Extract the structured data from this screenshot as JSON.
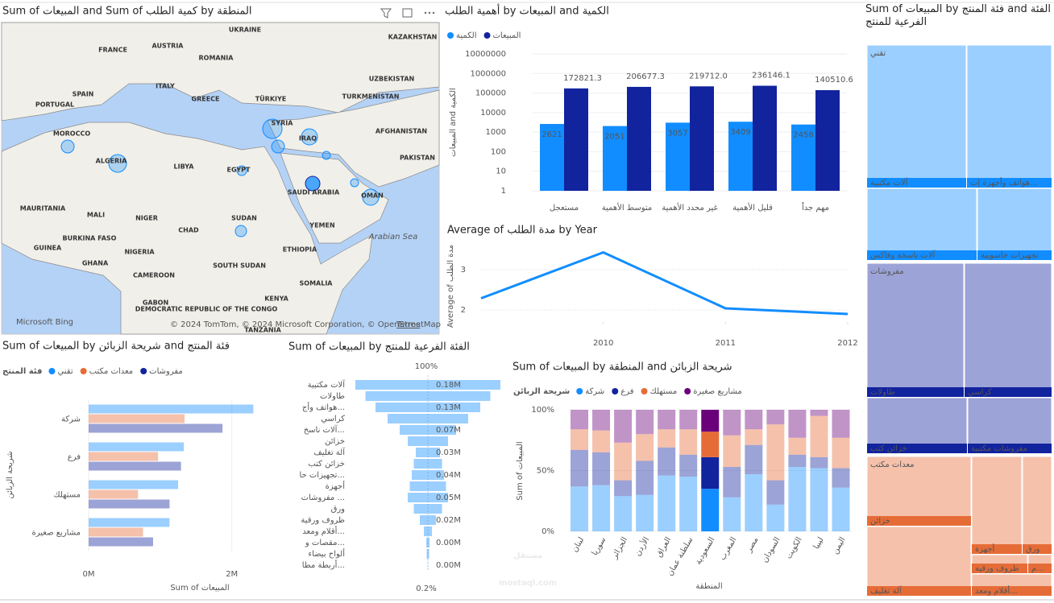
{
  "chart_data": [
    {
      "type": "map",
      "title": "Sum of المبيعات and Sum of كمية الطلب by المنطقة",
      "places": [
        "UKRAINE",
        "KAZAKHSTAN",
        "FRANCE",
        "AUSTRIA",
        "ROMANIA",
        "SPAIN",
        "ITALY",
        "GREECE",
        "TÜRKIYE",
        "UZBEKISTAN",
        "TURKMENISTAN",
        "PORTUGAL",
        "SYRIA",
        "IRAQ",
        "AFGHANISTAN",
        "MOROCCO",
        "PAKISTAN",
        "ALGERIA",
        "LIBYA",
        "EGYPT",
        "SAUDI ARABIA",
        "OMAN",
        "MAURITANIA",
        "MALI",
        "NIGER",
        "CHAD",
        "SUDAN",
        "YEMEN",
        "BURKINA FASO",
        "GUINEA",
        "NIGERIA",
        "SOUTH SUDAN",
        "GHANA",
        "CAMEROON",
        "ETHIOPIA",
        "SOMALIA",
        "GABON",
        "KENYA",
        "DEMOCRATIC REPUBLIC OF THE CONGO",
        "TANZANIA"
      ],
      "sea_label": "Arabian Sea",
      "attribution": {
        "brand": "Microsoft Bing",
        "copyright": "© 2024 TomTom, © 2024 Microsoft Corporation, © OpenStreetMap",
        "terms": "Terms"
      }
    },
    {
      "type": "bar",
      "title": "أهمية الطلب by المبيعات and الكمية",
      "ylabel": "المبيعات and الكمية",
      "categories": [
        "مستعجل",
        "متوسط الأهمية",
        "غير محدد الأهمية",
        "قليل الأهمية",
        "مهم جداً"
      ],
      "series": [
        {
          "name": "الكمية",
          "color": "#118DFF",
          "values": [
            2621,
            2051,
            3057,
            3409,
            2458
          ]
        },
        {
          "name": "المبيعات",
          "color": "#12239E",
          "values": [
            172821.3,
            206677.3,
            219712.0,
            236146.1,
            140510.6
          ],
          "value_labels": [
            "172821.3",
            "206677.3",
            "219712.0",
            "236146.1",
            "140510.6"
          ]
        }
      ],
      "log_scale": true,
      "ylim": [
        1,
        10000000
      ],
      "yticks": [
        1,
        10,
        100,
        1000,
        10000,
        100000,
        1000000,
        10000000
      ],
      "grid": true,
      "legend": "top-left"
    },
    {
      "type": "line",
      "title": "Average of مدة الطلب by Year",
      "ylabel": "Average of مدة الطلب",
      "x": [
        2009,
        2010,
        2011,
        2012
      ],
      "values": [
        2.29,
        3.43,
        2.04,
        1.9
      ],
      "color": "#118DFF",
      "xlim": [
        2009,
        2012
      ],
      "xticks": [
        2010,
        2011,
        2012
      ],
      "ylim": [
        1.7,
        3.6
      ],
      "yticks": [
        2,
        3
      ],
      "grid": true
    },
    {
      "type": "treemap",
      "title": "Sum of المبيعات by فئة المنتج and الفئة الفرعية للمنتج",
      "groups": [
        {
          "name": "تقني",
          "color": "#118DFF",
          "children": [
            "آلات مكتبية",
            "هواتف وأجهزة إت...",
            "آلات ناسخة وفاكس",
            "تجهيزات حاسوبية"
          ]
        },
        {
          "name": "مفروشات",
          "color": "#12239E",
          "children": [
            "طاولات",
            "كراسي",
            "خزائن كتب",
            "مفروشات مكتبية"
          ]
        },
        {
          "name": "معدات مكتب",
          "color": "#E66C37",
          "children": [
            "خزائن",
            "آلة تغليف",
            "أجهزة",
            "ورق",
            "ظروف ورقية",
            "م...",
            "أقلام ومعد..."
          ]
        }
      ]
    },
    {
      "type": "hbar",
      "title": "Sum of المبيعات by شريحة الزبائن and فئة المنتج",
      "legend_title": "فئة المنتج",
      "xlabel": "Sum of المبيعات",
      "ylabel": "شريحة الزبائن",
      "categories": [
        "شركة",
        "فرع",
        "مستهلك",
        "مشاريع صغيرة"
      ],
      "series": [
        {
          "name": "تقني",
          "color": "#118DFF",
          "values": [
            2300000,
            1330000,
            1250000,
            1130000
          ]
        },
        {
          "name": "معدات مكتب",
          "color": "#E66C37",
          "values": [
            1340000,
            970000,
            690000,
            760000
          ]
        },
        {
          "name": "مفروشات",
          "color": "#12239E",
          "values": [
            1870000,
            1290000,
            1130000,
            900000
          ]
        }
      ],
      "xlim": [
        0,
        2600000
      ],
      "xticks": [
        {
          "value": 0,
          "label": "0M"
        },
        {
          "value": 2000000,
          "label": "2M"
        }
      ]
    },
    {
      "type": "funnel",
      "title": "Sum of المبيعات by الفئة الفرعية للمنتج",
      "color": "#118DFF",
      "categories": [
        "آلات مكتبية",
        "طاولات",
        "هواتف وأج...",
        "كراسي",
        "آلات ناسخ...",
        "خزائن",
        "آلة تغليف",
        "خزائن كتب",
        "تجهيزات حا...",
        "أجهزة",
        "مفروشات ...",
        "ورق",
        "ظروف ورقية",
        "أقلام ومعد...",
        "مقصات و...",
        "ألواح بيضاء",
        "أربطة مطا..."
      ],
      "values": [
        180000,
        155000,
        130000,
        100000,
        70000,
        50000,
        30000,
        35000,
        40000,
        45000,
        50000,
        35000,
        20000,
        10000,
        4000,
        3000,
        360
      ],
      "value_labels": [
        "0.18M",
        null,
        "0.13M",
        null,
        "0.07M",
        null,
        "0.03M",
        null,
        "0.04M",
        null,
        "0.05M",
        null,
        "0.02M",
        null,
        "0.00M",
        null,
        "0.00M"
      ],
      "percent_labels": [
        {
          "value": 100,
          "label": "100%"
        },
        {
          "value": 0.2,
          "label": "0.2%"
        }
      ]
    },
    {
      "type": "stacked100",
      "title": "Sum of المبيعات by المنطقة and شريحة الزبائن",
      "legend_title": "شريحة الزبائن",
      "xlabel": "المنطقة",
      "ylabel": "Sum of المبيعات",
      "categories": [
        "لبنان",
        "سوريا",
        "الجزائر",
        "الأردن",
        "العراق",
        "سلطنة عمان",
        "السعودية",
        "المغرب",
        "مصر",
        "السودان",
        "الكويت",
        "ليبيا",
        "اليمن"
      ],
      "highlighted": "السعودية",
      "series": [
        {
          "name": "شركة",
          "color": "#118DFF",
          "values": [
            37,
            38,
            29,
            30,
            46,
            45,
            35,
            28,
            47,
            22,
            53,
            52,
            36
          ]
        },
        {
          "name": "فرع",
          "color": "#12239E",
          "values": [
            30,
            27,
            13,
            28,
            23,
            18,
            26,
            25,
            24,
            20,
            10,
            9,
            16
          ]
        },
        {
          "name": "مستهلك",
          "color": "#E66C37",
          "values": [
            17,
            18,
            31,
            22,
            15,
            21,
            21,
            26,
            13,
            46,
            14,
            34,
            25
          ]
        },
        {
          "name": "مشاريع صغيرة",
          "color": "#6B007B",
          "values": [
            16,
            17,
            27,
            20,
            16,
            16,
            18,
            21,
            16,
            12,
            23,
            5,
            23
          ]
        }
      ],
      "ylim": [
        0,
        100
      ],
      "yticks": [
        {
          "value": 0,
          "label": "0%"
        },
        {
          "value": 50,
          "label": "50%"
        },
        {
          "value": 100,
          "label": "100%"
        }
      ]
    }
  ],
  "watermark": {
    "arabic": "مستقل",
    "latin": "mostaql.com"
  }
}
